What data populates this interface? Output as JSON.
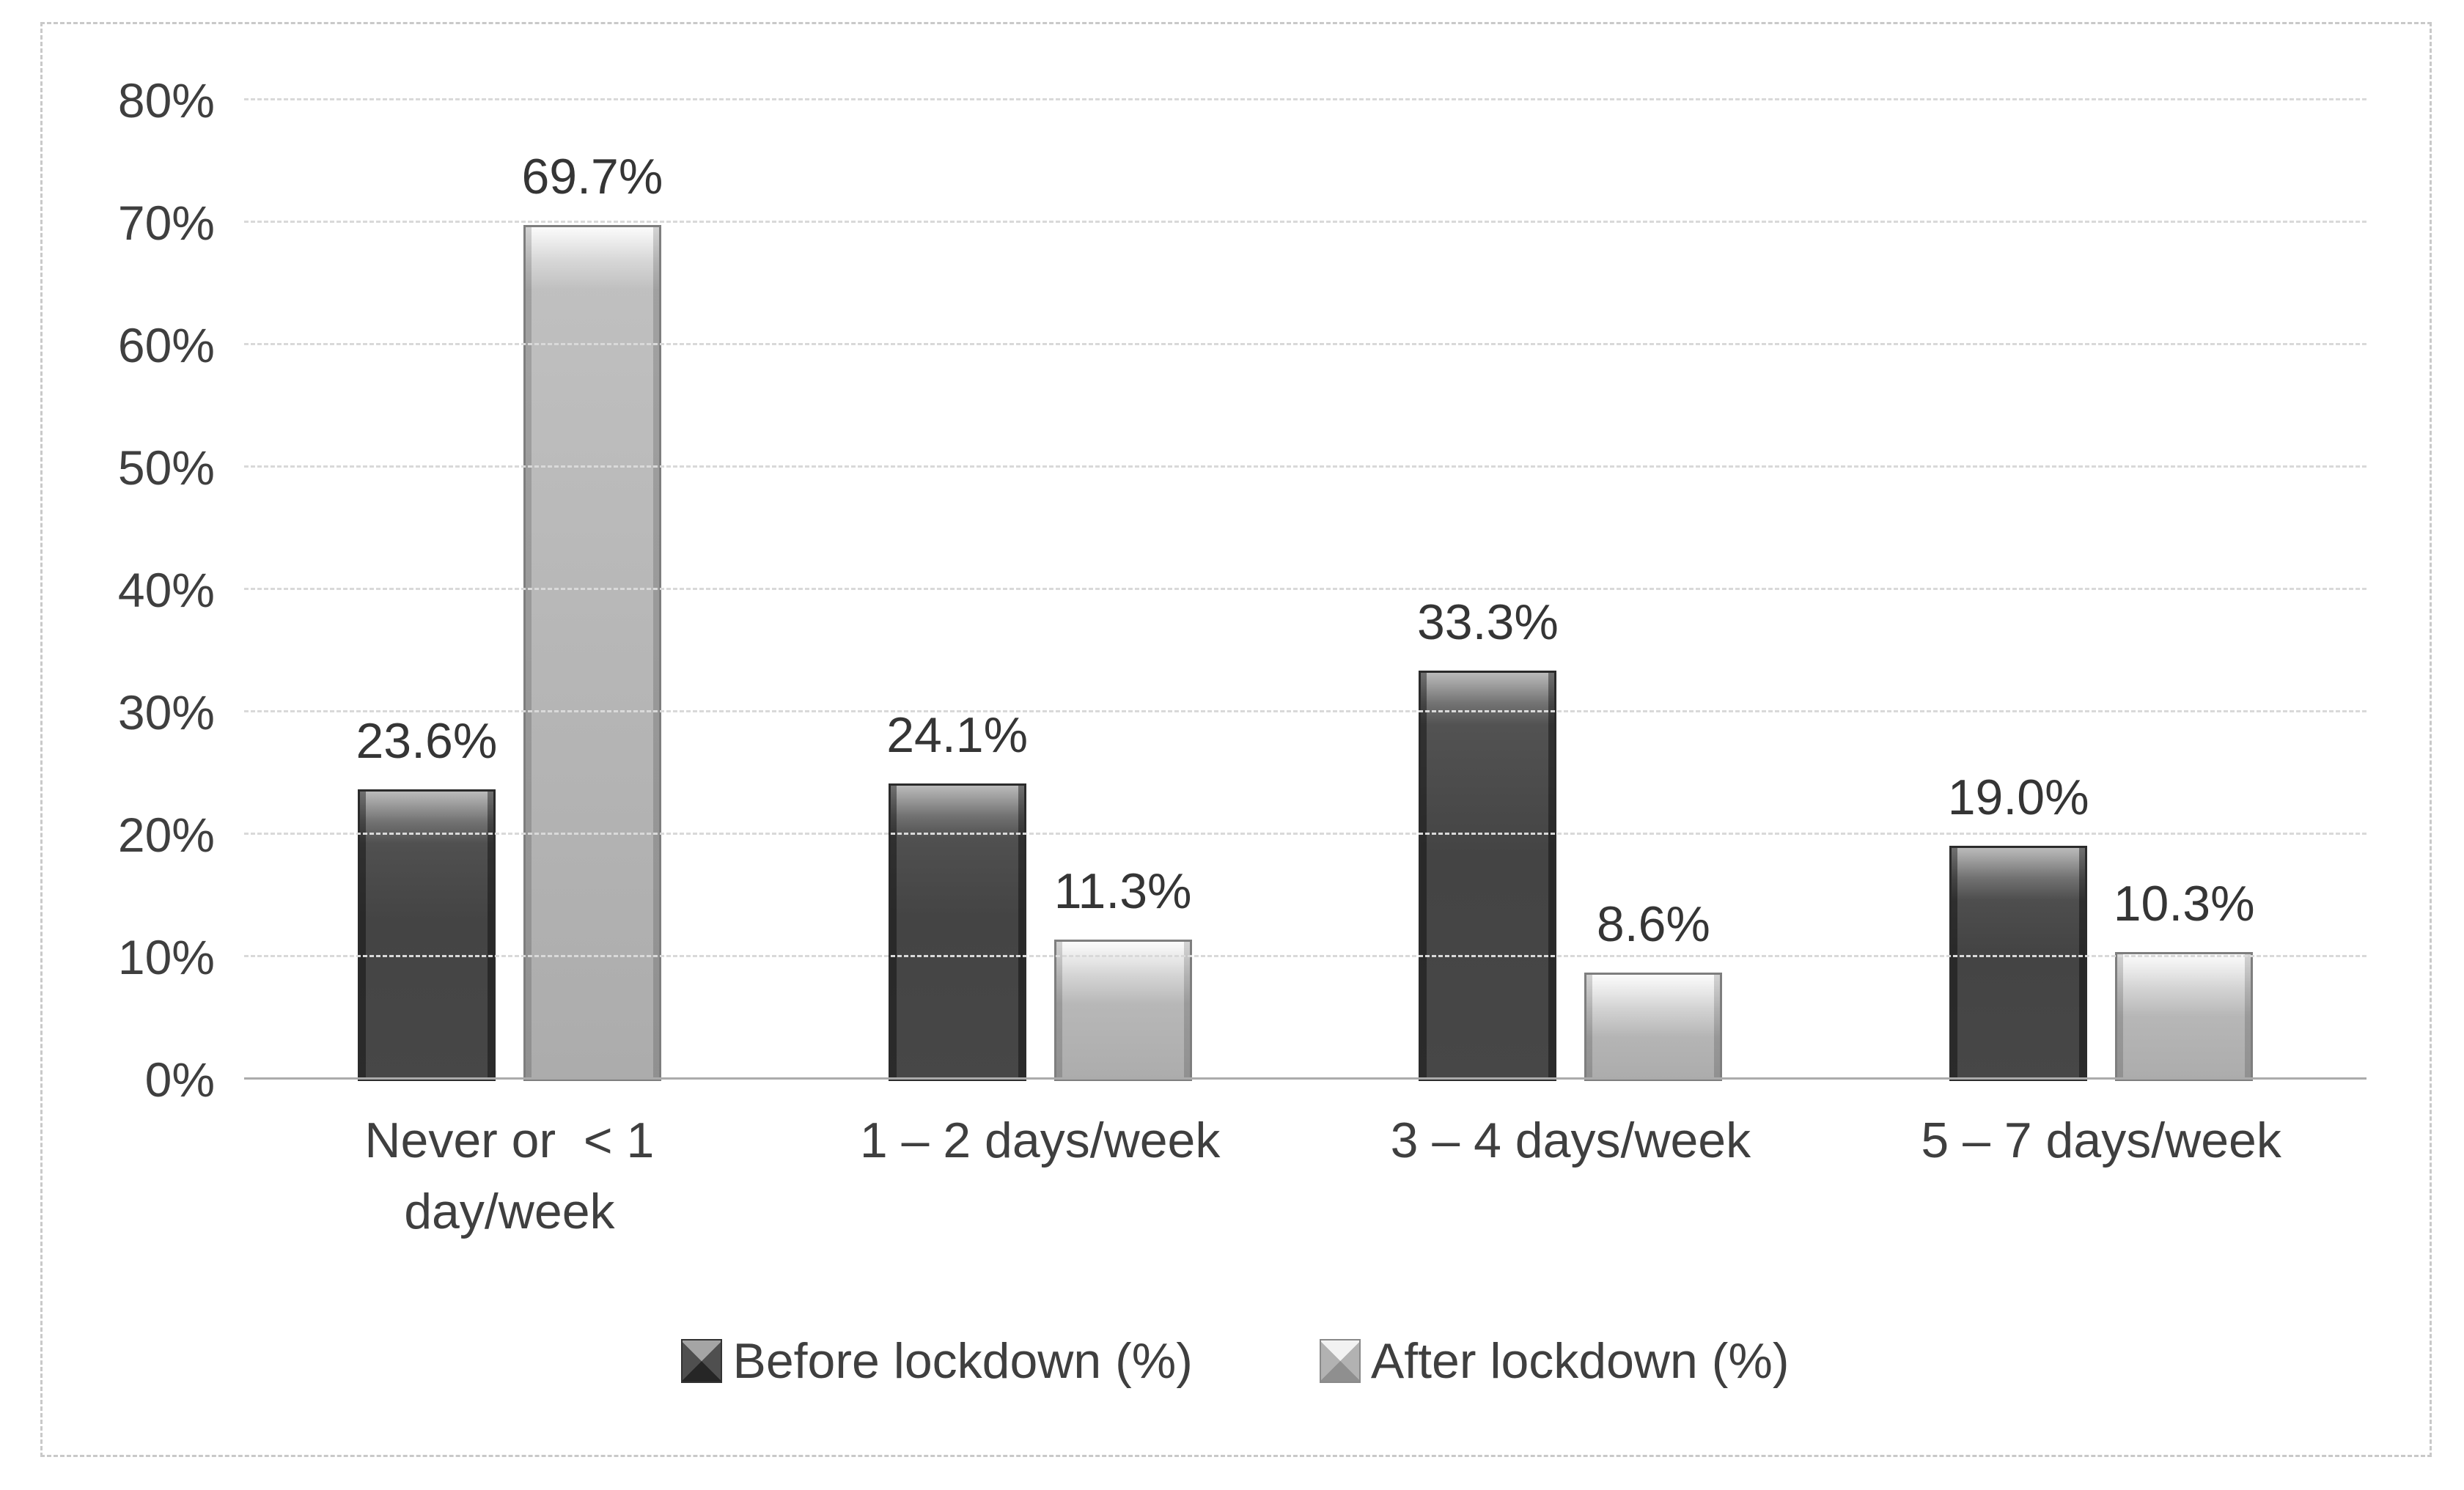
{
  "figure": {
    "background_color": "#ffffff",
    "frame_border_color": "#c9c9c9"
  },
  "chart_data": {
    "type": "bar",
    "title": "",
    "xlabel": "",
    "ylabel": "",
    "categories": [
      "Never or  < 1\nday/week",
      "1 – 2 days/week",
      "3 – 4 days/week",
      "5 – 7 days/week"
    ],
    "series": [
      {
        "name": "Before lockdown (%)",
        "values": [
          23.6,
          24.1,
          33.3,
          19.0
        ],
        "data_labels": [
          "23.6%",
          "24.1%",
          "33.3%",
          "19.0%"
        ],
        "color": "#4a4a4a"
      },
      {
        "name": "After lockdown (%)",
        "values": [
          69.7,
          11.3,
          8.6,
          10.3
        ],
        "data_labels": [
          "69.7%",
          "11.3%",
          "8.6%",
          "10.3%"
        ],
        "color": "#b5b5b5"
      }
    ],
    "ylim": [
      0,
      80
    ],
    "ytick_step": 10,
    "yticks": [
      "0%",
      "10%",
      "20%",
      "30%",
      "40%",
      "50%",
      "60%",
      "70%",
      "80%"
    ],
    "grid": true,
    "gridline_color": "#d9d9d9",
    "legend_position": "bottom"
  }
}
